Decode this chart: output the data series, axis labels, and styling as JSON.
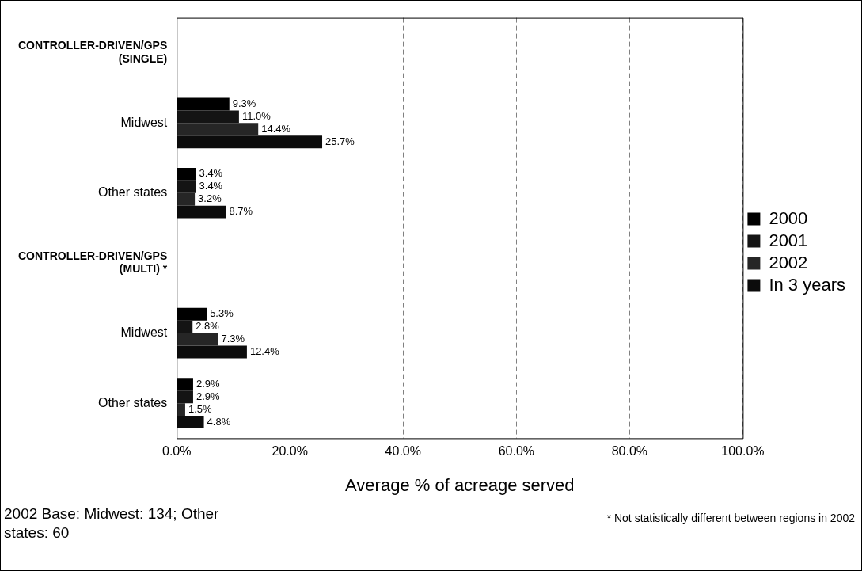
{
  "chart_data": {
    "type": "bar",
    "orientation": "horizontal",
    "xlabel": "Average % of acreage served",
    "categories": [
      "CONTROLLER-DRIVEN/GPS (SINGLE)",
      "Midwest",
      "Other states",
      "CONTROLLER-DRIVEN/GPS (MULTI) *",
      "Midwest",
      "Other states"
    ],
    "series": [
      {
        "name": "2000",
        "color": "#000000",
        "values": [
          null,
          9.3,
          3.4,
          null,
          5.3,
          2.9
        ],
        "value_labels": [
          null,
          "9.3%",
          "3.4%",
          null,
          "5.3%",
          "2.9%"
        ]
      },
      {
        "name": "2001",
        "color": "#141414",
        "values": [
          null,
          11.0,
          3.4,
          null,
          2.8,
          2.9
        ],
        "value_labels": [
          null,
          "11.0%",
          "3.4%",
          null,
          "2.8%",
          "2.9%"
        ]
      },
      {
        "name": "2002",
        "color": "#262626",
        "values": [
          null,
          14.4,
          3.2,
          null,
          7.3,
          1.5
        ],
        "value_labels": [
          null,
          "14.4%",
          "3.2%",
          null,
          "7.3%",
          "1.5%"
        ]
      },
      {
        "name": "In 3 years",
        "color": "#0c0c0c",
        "values": [
          null,
          25.7,
          8.7,
          null,
          12.4,
          4.8
        ],
        "value_labels": [
          null,
          "25.7%",
          "8.7%",
          null,
          "12.4%",
          "4.8%"
        ]
      }
    ],
    "xlim": [
      0,
      100
    ],
    "xticks": [
      {
        "value": 0,
        "label": "0.0%"
      },
      {
        "value": 20,
        "label": "20.0%"
      },
      {
        "value": 40,
        "label": "40.0%"
      },
      {
        "value": 60,
        "label": "60.0%"
      },
      {
        "value": 80,
        "label": "80.0%"
      },
      {
        "value": 100,
        "label": "100.0%"
      }
    ],
    "grid": "x",
    "legend": "right",
    "annotations": [
      "2002 Base: Midwest: 134; Other states: 60",
      "* Not statistically different between regions in 2002"
    ]
  }
}
